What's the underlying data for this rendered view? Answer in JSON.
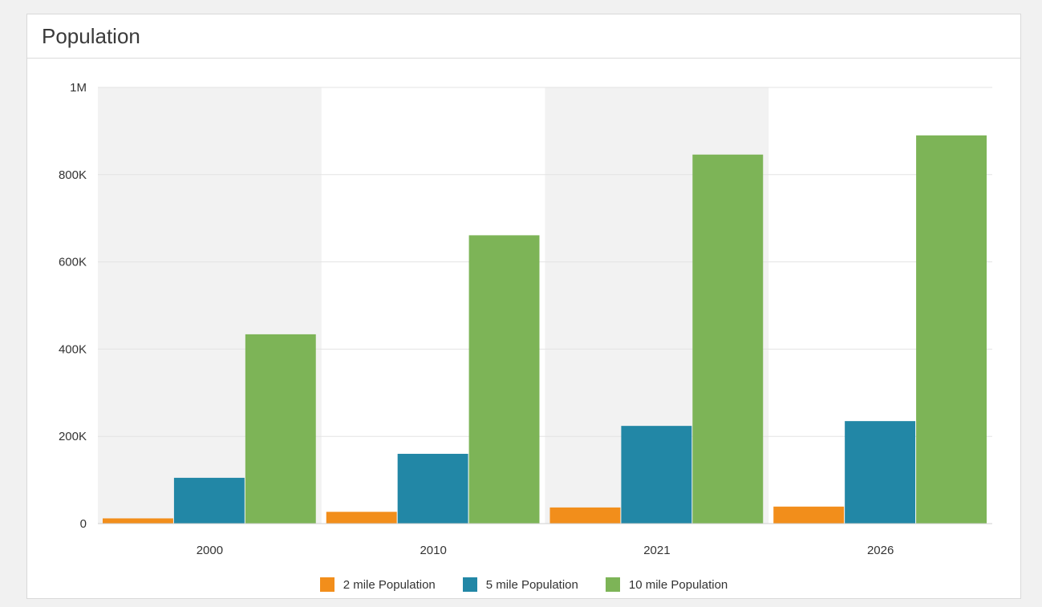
{
  "panel": {
    "title": "Population"
  },
  "chart_data": {
    "type": "bar",
    "title": "",
    "xlabel": "",
    "ylabel": "",
    "categories": [
      "2000",
      "2010",
      "2021",
      "2026"
    ],
    "series": [
      {
        "name": "2 mile Population",
        "color": "#f28e1b",
        "values": [
          12000,
          27000,
          37000,
          39000
        ]
      },
      {
        "name": "5 mile Population",
        "color": "#2287a6",
        "values": [
          105000,
          160000,
          224000,
          235000
        ]
      },
      {
        "name": "10 mile Population",
        "color": "#7db457",
        "values": [
          434000,
          661000,
          846000,
          890000
        ]
      }
    ],
    "ylim": [
      0,
      1000000
    ],
    "yticks": [
      {
        "value": 0,
        "label": "0"
      },
      {
        "value": 200000,
        "label": "200K"
      },
      {
        "value": 400000,
        "label": "400K"
      },
      {
        "value": 600000,
        "label": "600K"
      },
      {
        "value": 800000,
        "label": "800K"
      },
      {
        "value": 1000000,
        "label": "1M"
      }
    ],
    "grid": true,
    "alternating_band_color": "#f2f2f2",
    "legend_position": "bottom"
  }
}
